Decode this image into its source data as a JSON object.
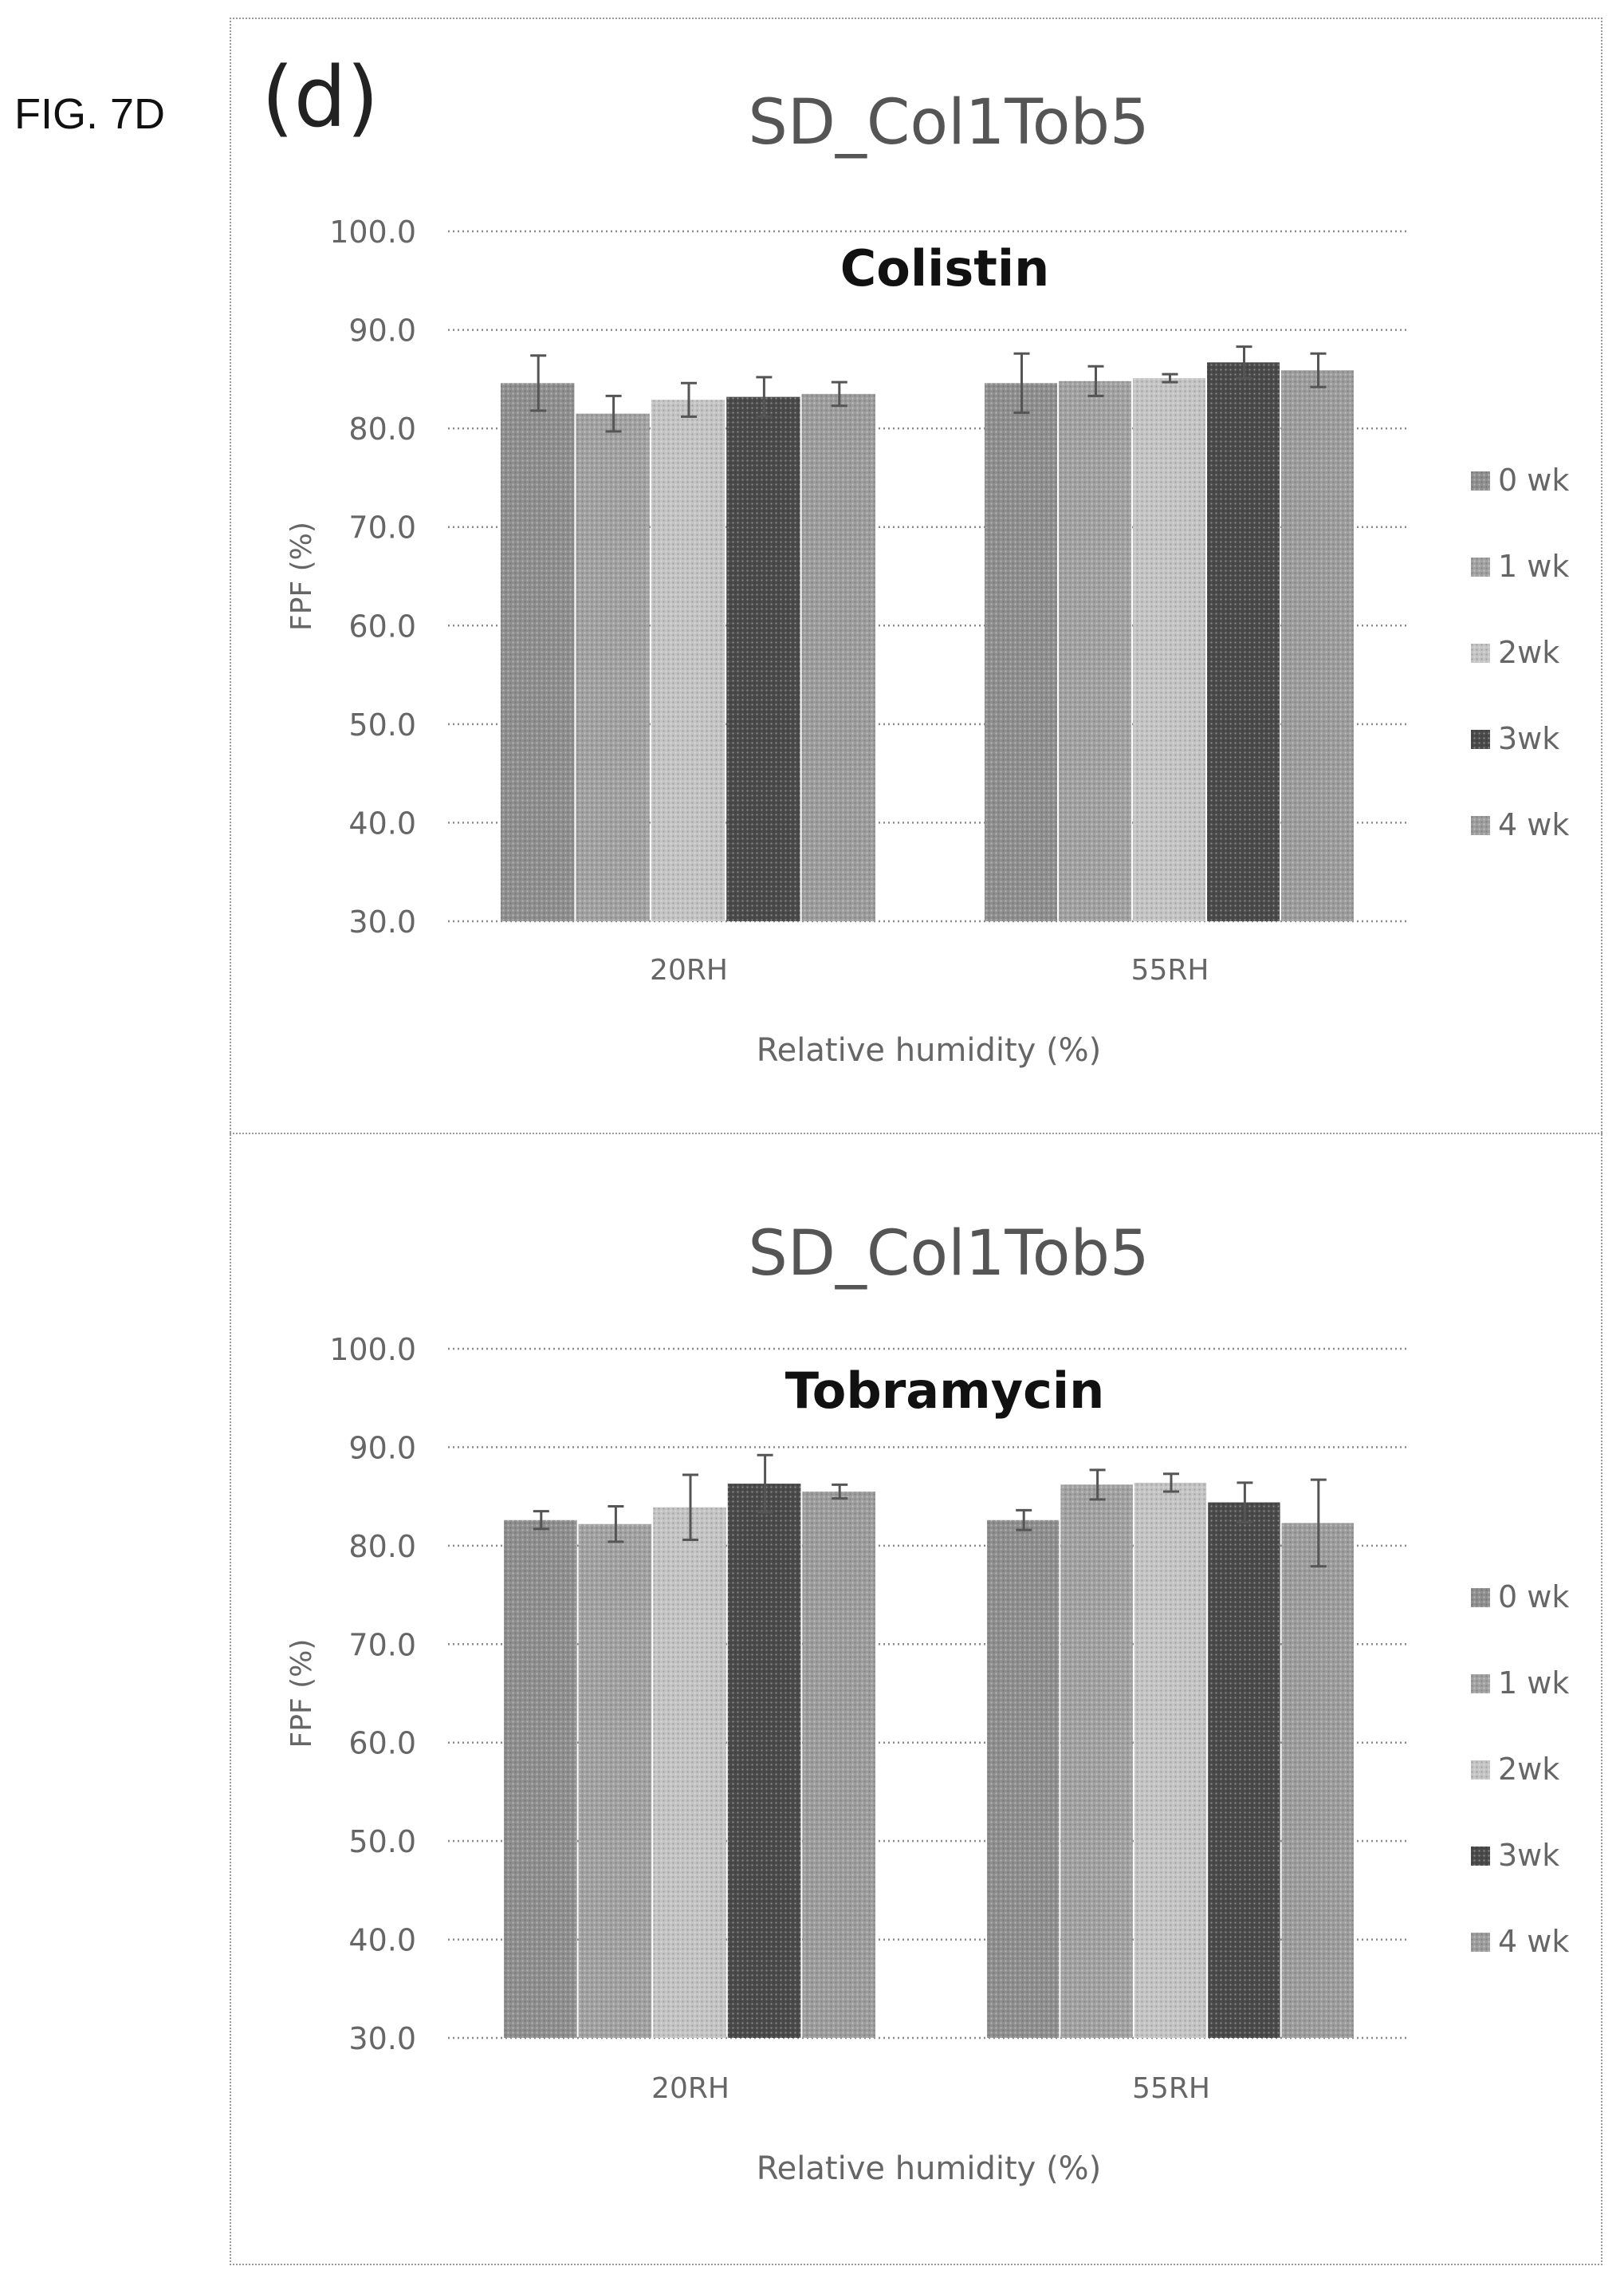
{
  "figure": {
    "label": "FIG. 7D",
    "panel_letter": "(d)"
  },
  "colors": {
    "0 wk": "#8f8f8f",
    "1 wk": "#a2a2a2",
    "2wk": "#c4c4c4",
    "3wk": "#4a4a4a",
    "4 wk": "#9d9d9d"
  },
  "chart_data": [
    {
      "type": "bar",
      "title": "SD_Col1Tob5",
      "subtitle": "Colistin",
      "xlabel": "Relative humidity (%)",
      "ylabel": "FPF (%)",
      "ylim": [
        30,
        100
      ],
      "yticks": [
        "30.0",
        "40.0",
        "50.0",
        "60.0",
        "70.0",
        "80.0",
        "90.0",
        "100.0"
      ],
      "grid": true,
      "legend": "right",
      "categories": [
        "20RH",
        "55RH"
      ],
      "series": [
        {
          "name": "0 wk",
          "values": [
            84.6,
            84.6
          ],
          "errors": [
            2.8,
            3.0
          ]
        },
        {
          "name": "1 wk",
          "values": [
            81.5,
            84.8
          ],
          "errors": [
            1.8,
            1.5
          ]
        },
        {
          "name": "2wk",
          "values": [
            82.9,
            85.1
          ],
          "errors": [
            1.7,
            0.4
          ]
        },
        {
          "name": "3wk",
          "values": [
            83.2,
            86.7
          ],
          "errors": [
            2.0,
            1.6
          ]
        },
        {
          "name": "4 wk",
          "values": [
            83.5,
            85.9
          ],
          "errors": [
            1.2,
            1.7
          ]
        }
      ]
    },
    {
      "type": "bar",
      "title": "SD_Col1Tob5",
      "subtitle": "Tobramycin",
      "xlabel": "Relative humidity (%)",
      "ylabel": "FPF (%)",
      "ylim": [
        30,
        100
      ],
      "yticks": [
        "30.0",
        "40.0",
        "50.0",
        "60.0",
        "70.0",
        "80.0",
        "90.0",
        "100.0"
      ],
      "grid": true,
      "legend": "right",
      "categories": [
        "20RH",
        "55RH"
      ],
      "series": [
        {
          "name": "0 wk",
          "values": [
            82.6,
            82.6
          ],
          "errors": [
            0.9,
            1.0
          ]
        },
        {
          "name": "1 wk",
          "values": [
            82.2,
            86.2
          ],
          "errors": [
            1.8,
            1.5
          ]
        },
        {
          "name": "2wk",
          "values": [
            83.9,
            86.4
          ],
          "errors": [
            3.3,
            0.9
          ]
        },
        {
          "name": "3wk",
          "values": [
            86.3,
            84.4
          ],
          "errors": [
            2.9,
            2.0
          ]
        },
        {
          "name": "4 wk",
          "values": [
            85.5,
            82.3
          ],
          "errors": [
            0.7,
            4.4
          ]
        }
      ]
    }
  ]
}
